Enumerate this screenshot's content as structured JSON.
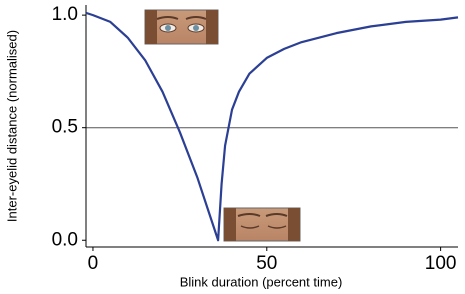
{
  "chart_data": {
    "type": "line",
    "x_label": "Blink duration (percent time)",
    "y_label": "Inter-eyelid distance (normalised)",
    "xlim": [
      -2,
      105
    ],
    "ylim": [
      -0.03,
      1.045
    ],
    "xticks": [
      0,
      50,
      100
    ],
    "yticks": [
      {
        "value": 0,
        "label": "0.0"
      },
      {
        "value": 0.5,
        "label": "0.5"
      },
      {
        "value": 1,
        "label": "1.0"
      }
    ],
    "hline": 0.5,
    "x": [
      -2,
      0,
      5,
      10,
      15,
      20,
      25,
      30,
      33,
      36,
      37,
      38,
      40,
      42,
      45,
      50,
      55,
      60,
      70,
      80,
      90,
      100,
      105
    ],
    "series": [
      {
        "color": "#2b3f94",
        "values": [
          1.01,
          1.0,
          0.97,
          0.9,
          0.8,
          0.66,
          0.48,
          0.28,
          0.14,
          0,
          0.25,
          0.42,
          0.58,
          0.66,
          0.74,
          0.81,
          0.85,
          0.88,
          0.92,
          0.95,
          0.97,
          0.98,
          0.99
        ]
      }
    ]
  }
}
